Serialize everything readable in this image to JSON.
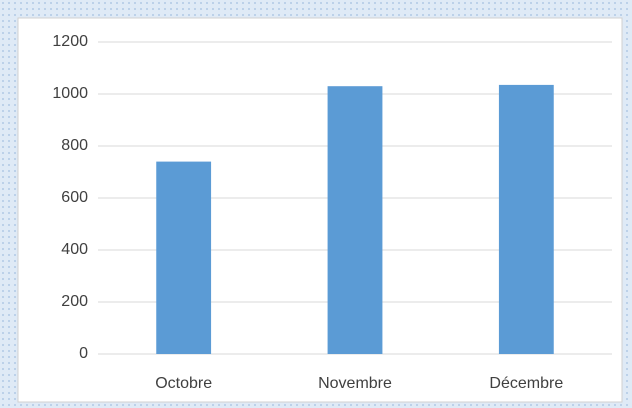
{
  "chart_data": {
    "type": "bar",
    "categories": [
      "Octobre",
      "Novembre",
      "Décembre"
    ],
    "values": [
      740,
      1030,
      1035
    ],
    "color": "#5b9bd5",
    "ylim": [
      0,
      1200
    ],
    "yticks": [
      0,
      200,
      400,
      600,
      800,
      1000,
      1200
    ],
    "grid": true
  }
}
